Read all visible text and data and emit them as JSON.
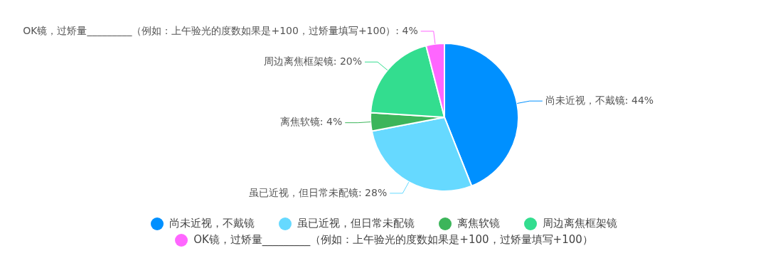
{
  "chart_data": {
    "type": "pie",
    "categories": [
      "尚未近视，不戴镜",
      "虽已近视，但日常未配镜",
      "离焦软镜",
      "周边离焦框架镜",
      "OK镜，过矫量_________（例如：上午验光的度数如果是+100，过矫量填写+100）"
    ],
    "values": [
      44,
      28,
      4,
      20,
      4
    ],
    "colors": [
      "#0090ff",
      "#66d9ff",
      "#3cb55a",
      "#33dd8f",
      "#ff66ff"
    ],
    "value_labels": [
      ": 44%",
      ": 28%",
      ": 4%",
      ": 20%",
      ": 4%"
    ],
    "legend": "bottom"
  }
}
